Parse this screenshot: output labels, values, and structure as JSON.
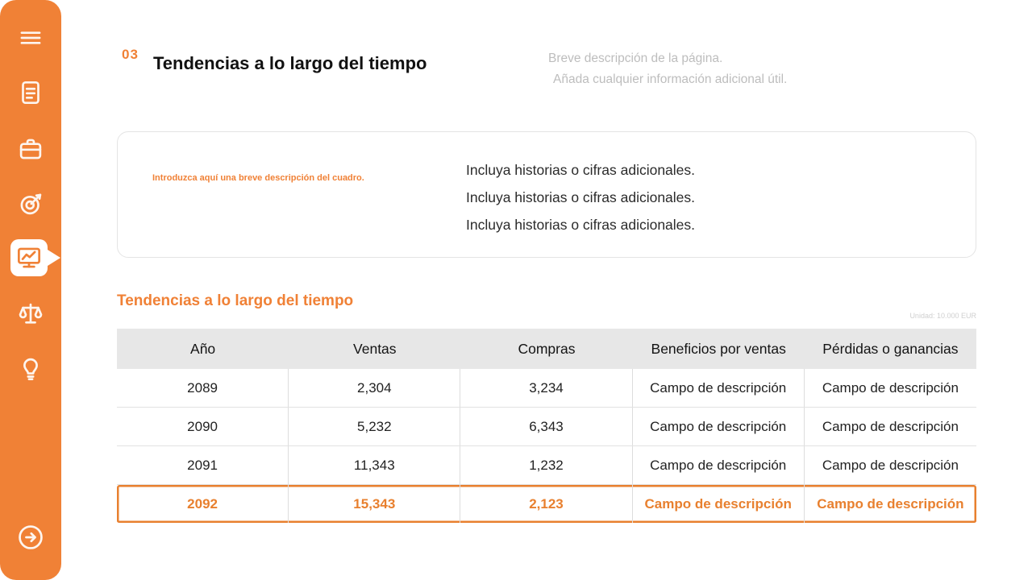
{
  "sidebar": {
    "items": [
      {
        "icon": "hamburger-icon",
        "label": "menu"
      },
      {
        "icon": "document-icon",
        "label": "document"
      },
      {
        "icon": "briefcase-icon",
        "label": "briefcase"
      },
      {
        "icon": "target-icon",
        "label": "target"
      },
      {
        "icon": "monitor-chart-icon",
        "label": "trends-chart",
        "active": true
      },
      {
        "icon": "scales-icon",
        "label": "balance"
      },
      {
        "icon": "lightbulb-icon",
        "label": "idea"
      },
      {
        "icon": "arrow-right-icon",
        "label": "next"
      }
    ]
  },
  "header": {
    "number": "03",
    "title": "Tendencias a lo largo del tiempo",
    "description_line1": "Breve descripción de la página.",
    "description_line2": "Añada cualquier información adicional útil."
  },
  "info_card": {
    "caption": "Introduzca aquí una breve descripción del cuadro.",
    "lines": [
      "Incluya historias o cifras adicionales.",
      "Incluya historias o cifras adicionales.",
      "Incluya historias o cifras adicionales."
    ]
  },
  "section": {
    "title": "Tendencias a lo largo del tiempo",
    "unit_note": "Unidad: 10.000 EUR"
  },
  "table": {
    "headers": [
      "Año",
      "Ventas",
      "Compras",
      "Beneficios por ventas",
      "Pérdidas o ganancias"
    ],
    "rows": [
      {
        "cells": [
          "2089",
          "2,304",
          "3,234",
          "Campo de descripción",
          "Campo de descripción"
        ],
        "highlight": false
      },
      {
        "cells": [
          "2090",
          "5,232",
          "6,343",
          "Campo de descripción",
          "Campo de descripción"
        ],
        "highlight": false
      },
      {
        "cells": [
          "2091",
          "11,343",
          "1,232",
          "Campo de descripción",
          "Campo de descripción"
        ],
        "highlight": false
      },
      {
        "cells": [
          "2092",
          "15,343",
          "2,123",
          "Campo de descripción",
          "Campo de descripción"
        ],
        "highlight": true
      }
    ]
  },
  "colors": {
    "accent": "#F08136",
    "highlight": "#E8802F",
    "table_header_bg": "#E7E7E7",
    "muted_text": "#bdbdbd"
  }
}
